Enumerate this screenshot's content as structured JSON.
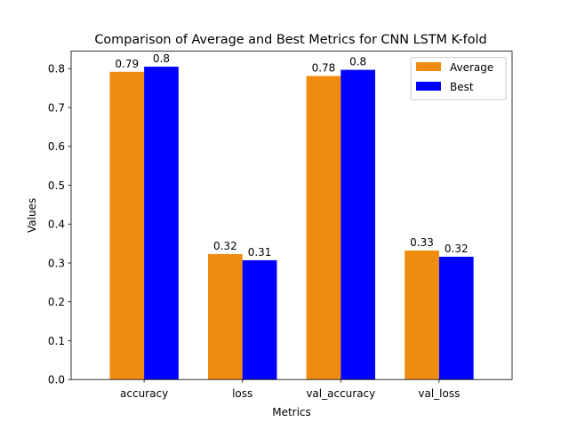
{
  "chart_data": {
    "type": "bar",
    "title": "Comparison of Average and Best Metrics for CNN LSTM K-fold",
    "xlabel": "Metrics",
    "ylabel": "Values",
    "categories": [
      "accuracy",
      "loss",
      "val_accuracy",
      "val_loss"
    ],
    "series": [
      {
        "name": "Average",
        "color": "#ef8c0f",
        "values": [
          0.792,
          0.323,
          0.781,
          0.332
        ],
        "labels": [
          "0.79",
          "0.32",
          "0.78",
          "0.33"
        ]
      },
      {
        "name": "Best",
        "color": "#0000ff",
        "values": [
          0.805,
          0.307,
          0.797,
          0.316
        ],
        "labels": [
          "0.8",
          "0.31",
          "0.8",
          "0.32"
        ]
      }
    ],
    "ylim": [
      0,
      0.845
    ],
    "yticks": [
      0.0,
      0.1,
      0.2,
      0.3,
      0.4,
      0.5,
      0.6,
      0.7,
      0.8
    ],
    "ytick_labels": [
      "0.0",
      "0.1",
      "0.2",
      "0.3",
      "0.4",
      "0.5",
      "0.6",
      "0.7",
      "0.8"
    ],
    "grid": false,
    "legend_position": "top-right"
  }
}
